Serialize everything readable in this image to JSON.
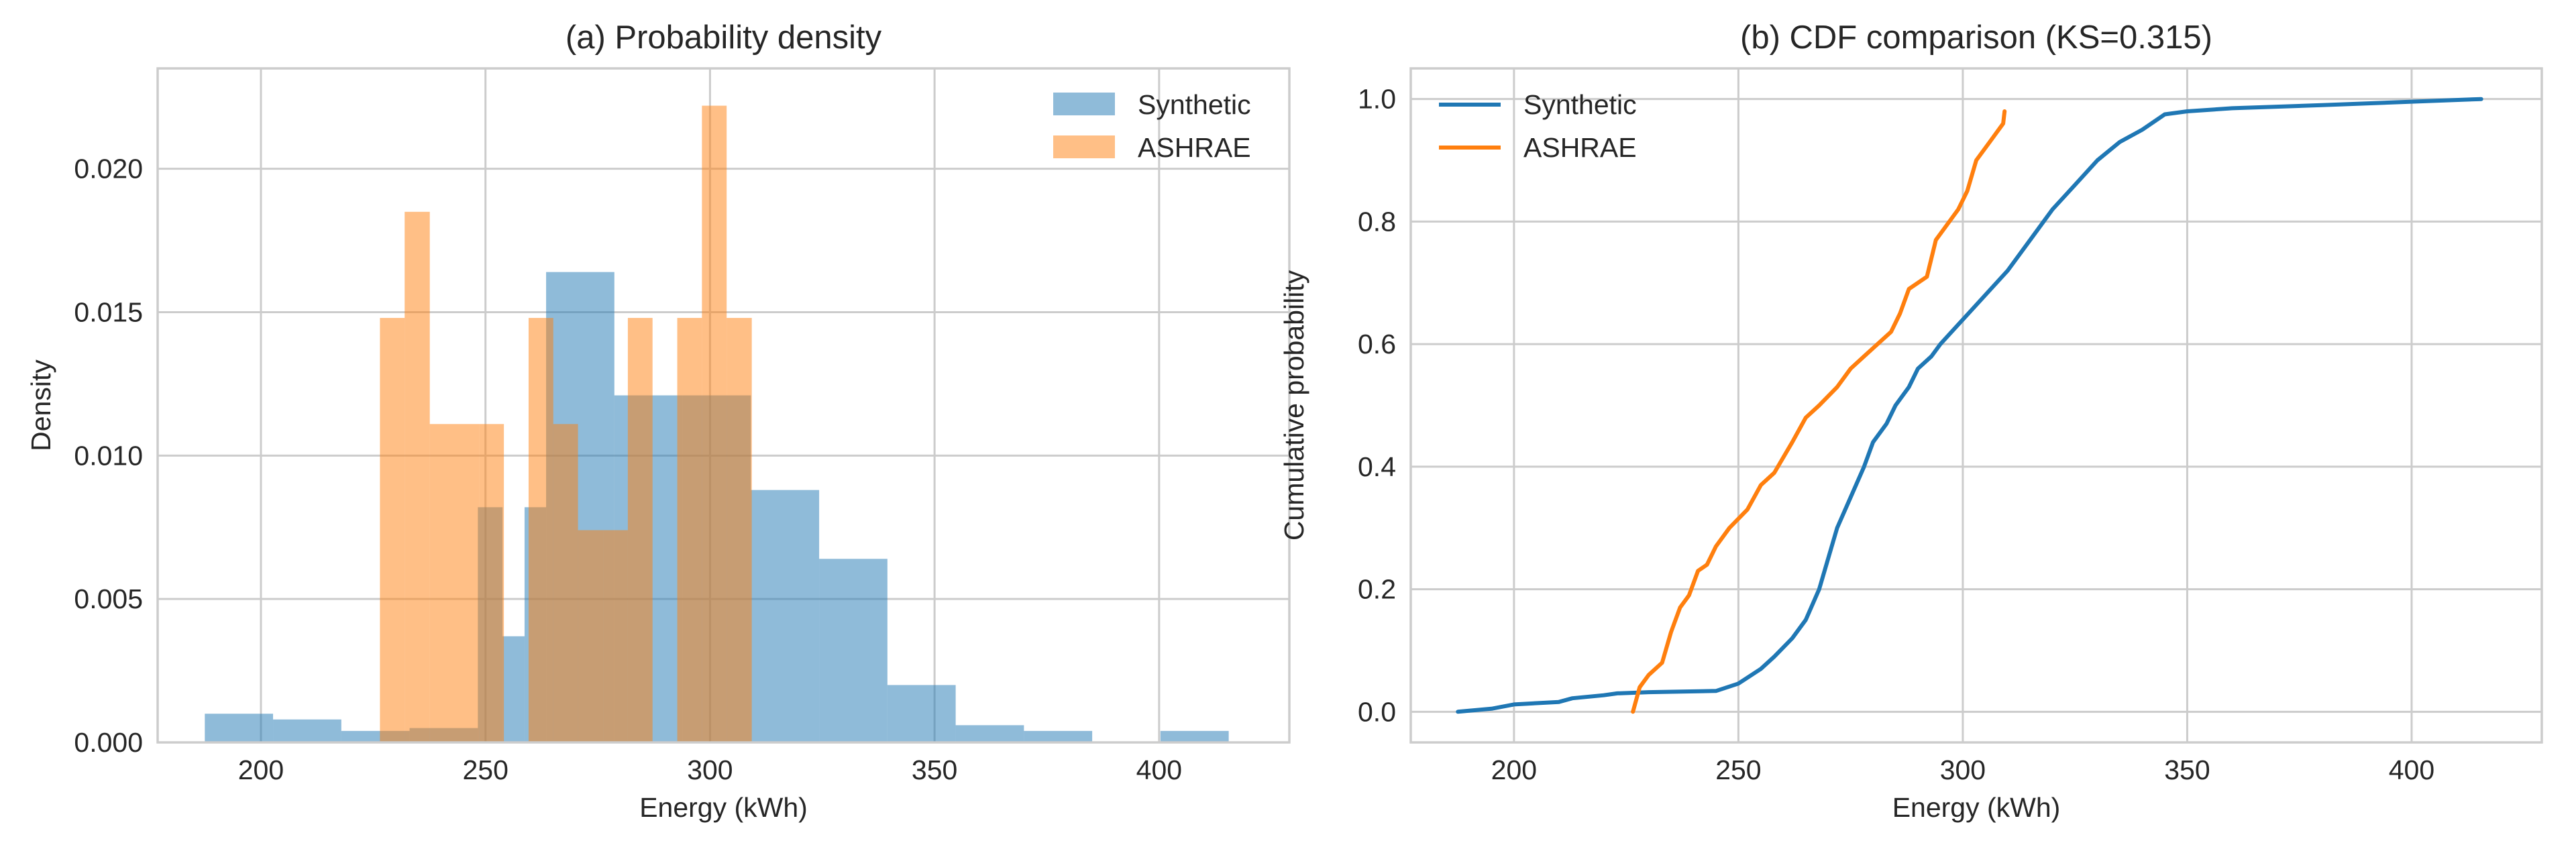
{
  "chart_data": [
    {
      "type": "histogram",
      "title": "(a) Probability density",
      "xlabel": "Energy (kWh)",
      "ylabel": "Density",
      "xlim": [
        177,
        429
      ],
      "ylim": [
        0,
        0.0235
      ],
      "xticks": [
        200,
        250,
        300,
        350,
        400
      ],
      "yticks": [
        0.0,
        0.005,
        0.01,
        0.015,
        0.02
      ],
      "ytick_labels": [
        "0.000",
        "0.005",
        "0.010",
        "0.015",
        "0.020"
      ],
      "grid": true,
      "legend": "top-right",
      "series": [
        {
          "name": "Synthetic",
          "color": "#1f77b4",
          "alpha": 0.5,
          "bin_edges": [
            187.5,
            202.7,
            217.9,
            233.1,
            248.3,
            253.8,
            258.7,
            263.5,
            278.7,
            293.9,
            309.1,
            324.3,
            339.5,
            354.7,
            369.9,
            385.1,
            400.3,
            415.5
          ],
          "values": [
            0.001,
            0.0008,
            0.0004,
            0.0005,
            0.0082,
            0.0037,
            0.0082,
            0.0164,
            0.0121,
            0.0121,
            0.0088,
            0.0064,
            0.002,
            0.0006,
            0.0004,
            0.0,
            0.0004
          ]
        },
        {
          "name": "ASHRAE",
          "color": "#ff7f0e",
          "alpha": 0.5,
          "bin_edges": [
            226.5,
            232.0,
            237.6,
            243.1,
            248.6,
            254.1,
            259.6,
            265.1,
            270.6,
            276.2,
            281.7,
            287.2,
            292.7,
            298.2,
            303.7,
            309.3
          ],
          "values": [
            0.0148,
            0.0185,
            0.0111,
            0.0111,
            0.0111,
            0.0,
            0.0148,
            0.0111,
            0.0074,
            0.0074,
            0.0148,
            0.0,
            0.0148,
            0.0222,
            0.0148
          ]
        }
      ]
    },
    {
      "type": "line",
      "title": "(b) CDF comparison (KS=0.315)",
      "xlabel": "Energy (kWh)",
      "ylabel": "Cumulative probability",
      "xlim": [
        177,
        429
      ],
      "ylim": [
        -0.05,
        1.05
      ],
      "xticks": [
        200,
        250,
        300,
        350,
        400
      ],
      "yticks": [
        0.0,
        0.2,
        0.4,
        0.6,
        0.8,
        1.0
      ],
      "ytick_labels": [
        "0.0",
        "0.2",
        "0.4",
        "0.6",
        "0.8",
        "1.0"
      ],
      "grid": true,
      "legend": "top-left",
      "series": [
        {
          "name": "Synthetic",
          "color": "#1f77b4",
          "x": [
            187.5,
            195,
            200,
            210,
            213,
            220,
            223,
            230,
            245,
            250,
            255,
            258,
            262,
            265,
            268,
            270,
            272,
            275,
            278,
            280,
            283,
            285,
            288,
            290,
            293,
            295,
            300,
            305,
            310,
            315,
            320,
            325,
            330,
            335,
            340,
            345,
            350,
            360,
            380,
            415.5
          ],
          "y": [
            0.0,
            0.005,
            0.012,
            0.016,
            0.022,
            0.027,
            0.03,
            0.032,
            0.034,
            0.046,
            0.07,
            0.09,
            0.12,
            0.15,
            0.2,
            0.25,
            0.3,
            0.35,
            0.4,
            0.44,
            0.47,
            0.5,
            0.53,
            0.56,
            0.58,
            0.6,
            0.64,
            0.68,
            0.72,
            0.77,
            0.82,
            0.86,
            0.9,
            0.93,
            0.95,
            0.975,
            0.98,
            0.985,
            0.99,
            1.0
          ]
        },
        {
          "name": "ASHRAE",
          "color": "#ff7f0e",
          "x": [
            226.5,
            228,
            230,
            233,
            235,
            237,
            239,
            241,
            243,
            245,
            248,
            252,
            255,
            258,
            262,
            265,
            268,
            272,
            275,
            278,
            281,
            284,
            286,
            288,
            292,
            294,
            296,
            299,
            301,
            303,
            304,
            306,
            309,
            309.3
          ],
          "y": [
            0.0,
            0.04,
            0.06,
            0.08,
            0.13,
            0.17,
            0.19,
            0.23,
            0.24,
            0.27,
            0.3,
            0.33,
            0.37,
            0.39,
            0.44,
            0.48,
            0.5,
            0.53,
            0.56,
            0.58,
            0.6,
            0.62,
            0.65,
            0.69,
            0.71,
            0.77,
            0.79,
            0.82,
            0.85,
            0.9,
            0.91,
            0.93,
            0.96,
            0.98
          ]
        }
      ]
    }
  ]
}
